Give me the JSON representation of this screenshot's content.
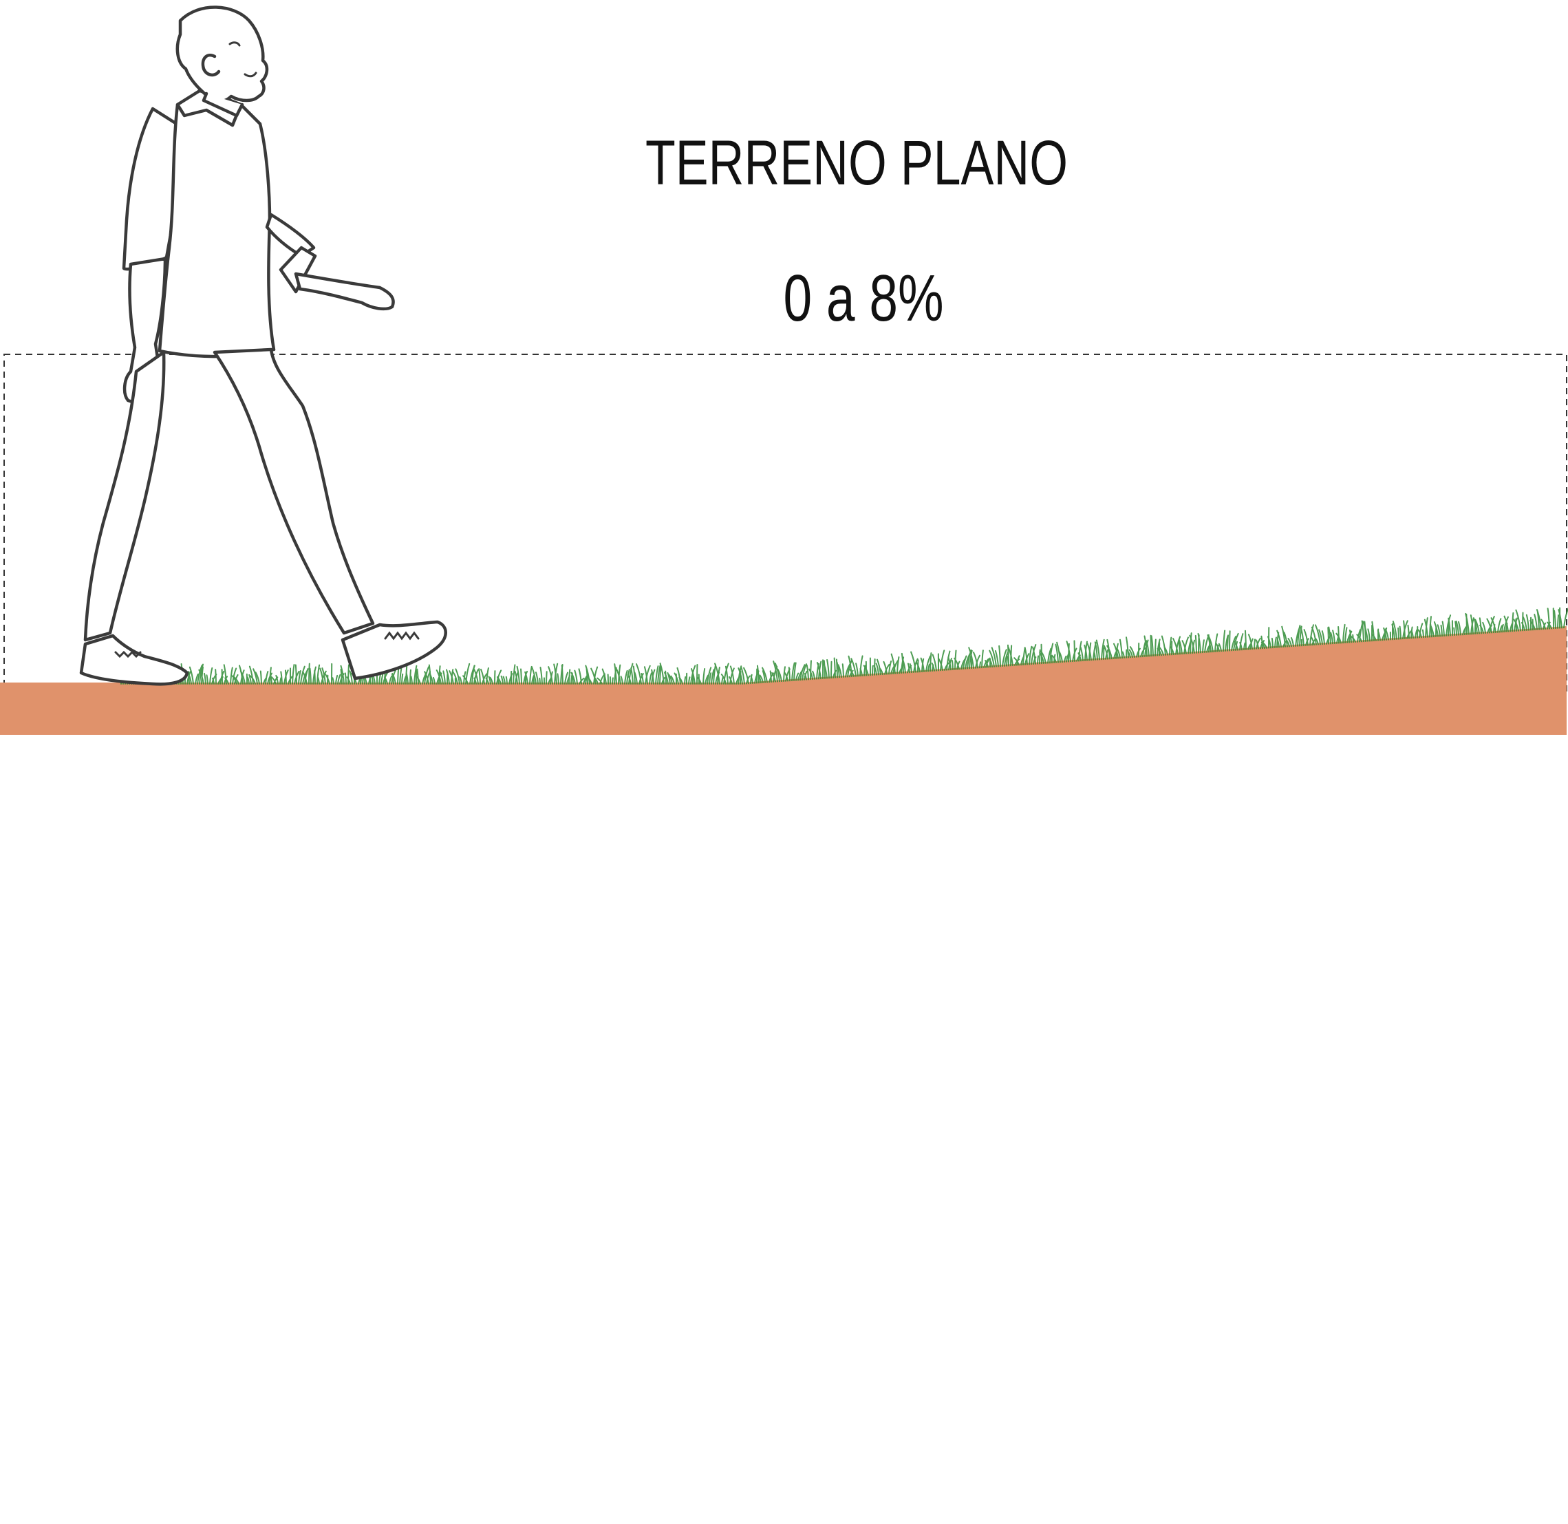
{
  "title": "TERRENO PLANO",
  "slope_range": "0 a 8%",
  "colors": {
    "ground": "#E0926B",
    "grass": "#2E8B35",
    "outline": "#3A3A3A",
    "guide_line": "#333333",
    "text": "#111111"
  },
  "figure": {
    "subject": "walking-person",
    "style": "line-art"
  }
}
